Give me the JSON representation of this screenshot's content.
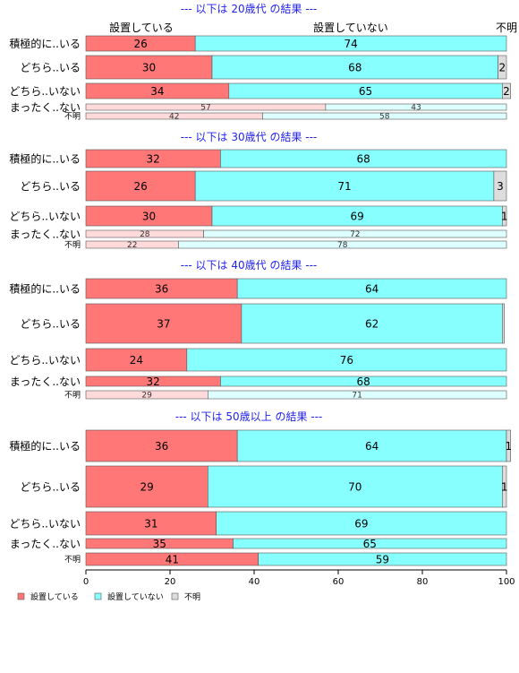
{
  "chart_data": {
    "type": "bar",
    "orientation": "horizontal",
    "stacked": true,
    "xlim": [
      0,
      100
    ],
    "x_ticks": [
      0,
      20,
      40,
      60,
      80,
      100
    ],
    "grid": false,
    "legend_placement": "bottom-left",
    "series_names": [
      "設置している",
      "設置していない",
      "不明"
    ],
    "series_colors": [
      "#FF7777",
      "#88FFFF",
      "#DDDDDD"
    ],
    "top_labels": [
      "設置している",
      "設置していない",
      "不明"
    ],
    "panels": [
      {
        "title": "--- 以下は 20歳代 の結果 ---",
        "rows": [
          {
            "category": "積極的に..いる",
            "values": [
              26,
              74,
              0
            ],
            "labels": [
              "26",
              "74",
              ""
            ]
          },
          {
            "category": "どちら..いる",
            "values": [
              30,
              68,
              2
            ],
            "labels": [
              "30",
              "68",
              "2"
            ]
          },
          {
            "category": "どちら..いない",
            "values": [
              34,
              65,
              2
            ],
            "labels": [
              "34",
              "65",
              "2"
            ]
          },
          {
            "category": "まったく..ない",
            "values": [
              57,
              43,
              0
            ],
            "labels": [
              "57",
              "43",
              ""
            ]
          },
          {
            "category": "不明",
            "values": [
              42,
              58,
              0
            ],
            "labels": [
              "42",
              "58",
              ""
            ]
          }
        ]
      },
      {
        "title": "--- 以下は 30歳代 の結果 ---",
        "rows": [
          {
            "category": "積極的に..いる",
            "values": [
              32,
              68,
              0
            ],
            "labels": [
              "32",
              "68",
              ""
            ]
          },
          {
            "category": "どちら..いる",
            "values": [
              26,
              71,
              3
            ],
            "labels": [
              "26",
              "71",
              "3"
            ]
          },
          {
            "category": "どちら..いない",
            "values": [
              30,
              69,
              1
            ],
            "labels": [
              "30",
              "69",
              "1"
            ]
          },
          {
            "category": "まったく..ない",
            "values": [
              28,
              72,
              0
            ],
            "labels": [
              "28",
              "72",
              ""
            ]
          },
          {
            "category": "不明",
            "values": [
              22,
              78,
              0
            ],
            "labels": [
              "22",
              "78",
              ""
            ]
          }
        ]
      },
      {
        "title": "--- 以下は 40歳代 の結果 ---",
        "rows": [
          {
            "category": "積極的に..いる",
            "values": [
              36,
              64,
              0
            ],
            "labels": [
              "36",
              "64",
              ""
            ]
          },
          {
            "category": "どちら..いる",
            "values": [
              37,
              62,
              0.5
            ],
            "labels": [
              "37",
              "62",
              ""
            ]
          },
          {
            "category": "どちら..いない",
            "values": [
              24,
              76,
              0
            ],
            "labels": [
              "24",
              "76",
              ""
            ]
          },
          {
            "category": "まったく..ない",
            "values": [
              32,
              68,
              0
            ],
            "labels": [
              "32",
              "68",
              ""
            ]
          },
          {
            "category": "不明",
            "values": [
              29,
              71,
              0
            ],
            "labels": [
              "29",
              "71",
              ""
            ]
          }
        ]
      },
      {
        "title": "--- 以下は 50歳以上 の結果 ---",
        "rows": [
          {
            "category": "積極的に..いる",
            "values": [
              36,
              64,
              1
            ],
            "labels": [
              "36",
              "64",
              "1"
            ]
          },
          {
            "category": "どちら..いる",
            "values": [
              29,
              70,
              1
            ],
            "labels": [
              "29",
              "70",
              "1"
            ]
          },
          {
            "category": "どちら..いない",
            "values": [
              31,
              69,
              0
            ],
            "labels": [
              "31",
              "69",
              ""
            ]
          },
          {
            "category": "まったく..ない",
            "values": [
              35,
              65,
              0
            ],
            "labels": [
              "35",
              "65",
              ""
            ]
          },
          {
            "category": "不明",
            "values": [
              41,
              59,
              0
            ],
            "labels": [
              "41",
              "59",
              ""
            ]
          }
        ]
      }
    ]
  }
}
